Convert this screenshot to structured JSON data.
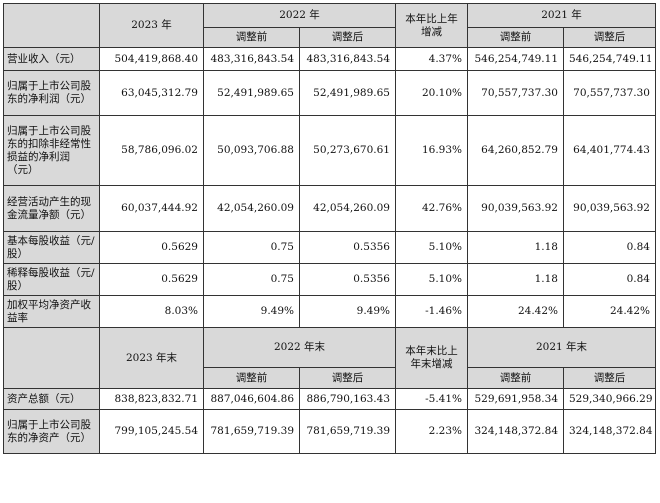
{
  "header1": {
    "y2023": "2023 年",
    "y2022": "2022 年",
    "change": "本年比上年增减",
    "y2021": "2021 年",
    "before": "调整前",
    "after": "调整后"
  },
  "rows1": [
    {
      "label": "营业收入（元）",
      "v": [
        "504,419,868.40",
        "483,316,843.54",
        "483,316,843.54",
        "4.37%",
        "546,254,749.11",
        "546,254,749.11"
      ]
    },
    {
      "label": "归属于上市公司股东的净利润（元）",
      "v": [
        "63,045,312.79",
        "52,491,989.65",
        "52,491,989.65",
        "20.10%",
        "70,557,737.30",
        "70,557,737.30"
      ]
    },
    {
      "label": "归属于上市公司股东的扣除非经常性损益的净利润（元）",
      "v": [
        "58,786,096.02",
        "50,093,706.88",
        "50,273,670.61",
        "16.93%",
        "64,260,852.79",
        "64,401,774.43"
      ]
    },
    {
      "label": "经营活动产生的现金流量净额（元）",
      "v": [
        "60,037,444.92",
        "42,054,260.09",
        "42,054,260.09",
        "42.76%",
        "90,039,563.92",
        "90,039,563.92"
      ]
    },
    {
      "label": "基本每股收益（元/股）",
      "v": [
        "0.5629",
        "0.75",
        "0.5356",
        "5.10%",
        "1.18",
        "0.84"
      ]
    },
    {
      "label": "稀释每股收益（元/股）",
      "v": [
        "0.5629",
        "0.75",
        "0.5356",
        "5.10%",
        "1.18",
        "0.84"
      ]
    },
    {
      "label": "加权平均净资产收益率",
      "v": [
        "8.03%",
        "9.49%",
        "9.49%",
        "-1.46%",
        "24.42%",
        "24.42%"
      ]
    }
  ],
  "header2": {
    "y2023": "2023 年末",
    "y2022": "2022 年末",
    "change": "本年末比上年末增减",
    "y2021": "2021 年末",
    "before": "调整前",
    "after": "调整后"
  },
  "rows2": [
    {
      "label": "资产总额（元）",
      "v": [
        "838,823,832.71",
        "887,046,604.86",
        "886,790,163.43",
        "-5.41%",
        "529,691,958.34",
        "529,340,966.29"
      ]
    },
    {
      "label": "归属于上市公司股东的净资产（元）",
      "v": [
        "799,105,245.54",
        "781,659,719.39",
        "781,659,719.39",
        "2.23%",
        "324,148,372.84",
        "324,148,372.84"
      ]
    }
  ]
}
